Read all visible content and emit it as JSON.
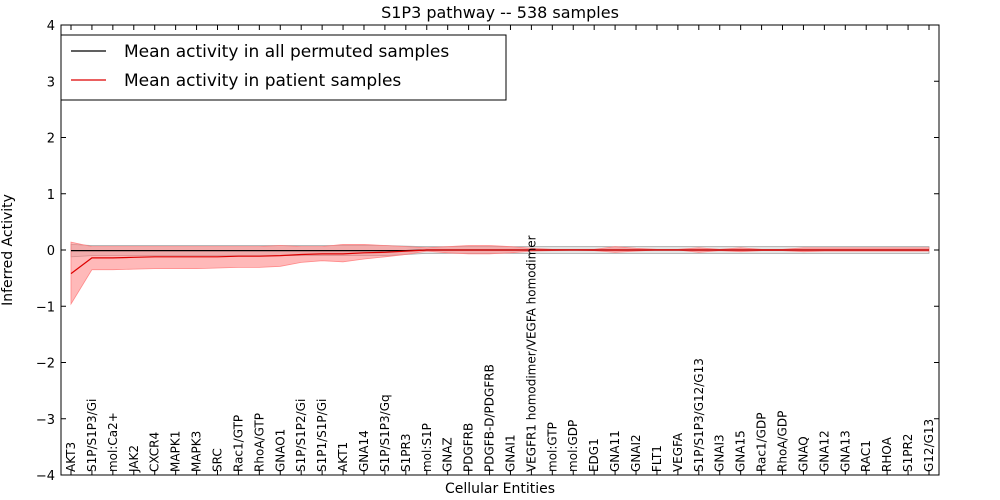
{
  "chart_data": {
    "type": "line",
    "title": "S1P3 pathway -- 538 samples",
    "xlabel": "Cellular Entities",
    "ylabel": "Inferred Activity",
    "ylim": [
      -4,
      4
    ],
    "yticks": [
      -4,
      -3,
      -2,
      -1,
      0,
      1,
      2,
      3,
      4
    ],
    "ytick_labels": [
      "−4",
      "−3",
      "−2",
      "−1",
      "0",
      "1",
      "2",
      "3",
      "4"
    ],
    "legend_position": "top-left",
    "categories": [
      "AKT3",
      "S1P/S1P3/Gi",
      "mol:Ca2+",
      "JAK2",
      "CXCR4",
      "MAPK1",
      "MAPK3",
      "SRC",
      "Rac1/GTP",
      "RhoA/GTP",
      "GNAO1",
      "S1P/S1P2/Gi",
      "S1P1/S1P/Gi",
      "AKT1",
      "GNA14",
      "S1P/S1P3/Gq",
      "S1PR3",
      "mol:S1P",
      "GNAZ",
      "PDGFRB",
      "PDGFB-D/PDGFRB",
      "GNAI1",
      "VEGFR1 homodimer/VEGFA homodimer",
      "mol:GTP",
      "mol:GDP",
      "EDG1",
      "GNA11",
      "GNAI2",
      "FLT1",
      "VEGFA",
      "S1P/S1P3/G12/G13",
      "GNAI3",
      "GNA15",
      "Rac1/GDP",
      "RhoA/GDP",
      "GNAQ",
      "GNA12",
      "GNA13",
      "RAC1",
      "RHOA",
      "S1PR2",
      "G12/G13"
    ],
    "series": [
      {
        "name": "Mean activity in all permuted samples",
        "color": "#000000",
        "band_color": "#999999",
        "values": [
          -0.01,
          -0.01,
          -0.01,
          -0.01,
          -0.01,
          -0.01,
          -0.01,
          -0.01,
          -0.01,
          -0.01,
          -0.01,
          -0.01,
          -0.01,
          -0.01,
          -0.01,
          -0.01,
          -0.01,
          0.0,
          0.0,
          0.0,
          0.0,
          0.0,
          0.0,
          0.0,
          0.0,
          0.0,
          0.0,
          0.0,
          0.0,
          0.0,
          0.0,
          0.0,
          0.0,
          0.0,
          0.0,
          0.0,
          0.0,
          0.0,
          0.0,
          0.0,
          0.0,
          0.0
        ],
        "lower": [
          -0.12,
          -0.1,
          -0.1,
          -0.1,
          -0.1,
          -0.1,
          -0.1,
          -0.1,
          -0.1,
          -0.1,
          -0.1,
          -0.1,
          -0.1,
          -0.1,
          -0.1,
          -0.1,
          -0.08,
          -0.06,
          -0.06,
          -0.06,
          -0.06,
          -0.06,
          -0.06,
          -0.06,
          -0.06,
          -0.06,
          -0.06,
          -0.06,
          -0.06,
          -0.06,
          -0.06,
          -0.06,
          -0.06,
          -0.06,
          -0.06,
          -0.06,
          -0.06,
          -0.06,
          -0.06,
          -0.06,
          -0.06,
          -0.06
        ],
        "upper": [
          0.1,
          0.08,
          0.08,
          0.08,
          0.08,
          0.08,
          0.08,
          0.08,
          0.08,
          0.08,
          0.08,
          0.08,
          0.08,
          0.08,
          0.08,
          0.08,
          0.07,
          0.06,
          0.06,
          0.06,
          0.06,
          0.06,
          0.06,
          0.06,
          0.06,
          0.06,
          0.06,
          0.06,
          0.06,
          0.06,
          0.06,
          0.06,
          0.06,
          0.06,
          0.06,
          0.06,
          0.06,
          0.06,
          0.06,
          0.06,
          0.06,
          0.06
        ]
      },
      {
        "name": "Mean activity in patient samples",
        "color": "#dd0000",
        "band_color": "#ff8080",
        "values": [
          -0.42,
          -0.14,
          -0.14,
          -0.13,
          -0.12,
          -0.12,
          -0.12,
          -0.12,
          -0.11,
          -0.11,
          -0.1,
          -0.08,
          -0.07,
          -0.07,
          -0.05,
          -0.04,
          -0.02,
          0.0,
          0.0,
          0.0,
          0.0,
          0.0,
          0.0,
          0.0,
          0.0,
          0.0,
          0.0,
          0.0,
          0.0,
          0.0,
          0.0,
          0.0,
          0.0,
          0.0,
          0.0,
          0.0,
          0.0,
          0.0,
          0.0,
          0.0,
          0.0,
          0.0
        ],
        "lower": [
          -0.96,
          -0.35,
          -0.35,
          -0.34,
          -0.33,
          -0.33,
          -0.33,
          -0.32,
          -0.31,
          -0.31,
          -0.29,
          -0.22,
          -0.19,
          -0.21,
          -0.16,
          -0.12,
          -0.08,
          -0.02,
          -0.05,
          -0.07,
          -0.07,
          -0.05,
          -0.02,
          -0.01,
          0.0,
          -0.01,
          -0.04,
          -0.02,
          0.0,
          0.0,
          -0.04,
          -0.01,
          -0.03,
          -0.01,
          -0.01,
          -0.03,
          -0.02,
          -0.02,
          -0.02,
          -0.02,
          -0.02,
          -0.02
        ],
        "upper": [
          0.14,
          0.06,
          0.06,
          0.06,
          0.06,
          0.06,
          0.06,
          0.06,
          0.06,
          0.06,
          0.08,
          0.06,
          0.06,
          0.1,
          0.1,
          0.08,
          0.06,
          0.04,
          0.06,
          0.08,
          0.08,
          0.06,
          0.03,
          0.01,
          0.01,
          0.01,
          0.06,
          0.03,
          0.01,
          0.01,
          0.04,
          0.01,
          0.04,
          0.01,
          0.01,
          0.04,
          0.04,
          0.04,
          0.04,
          0.04,
          0.04,
          0.04
        ]
      }
    ]
  }
}
